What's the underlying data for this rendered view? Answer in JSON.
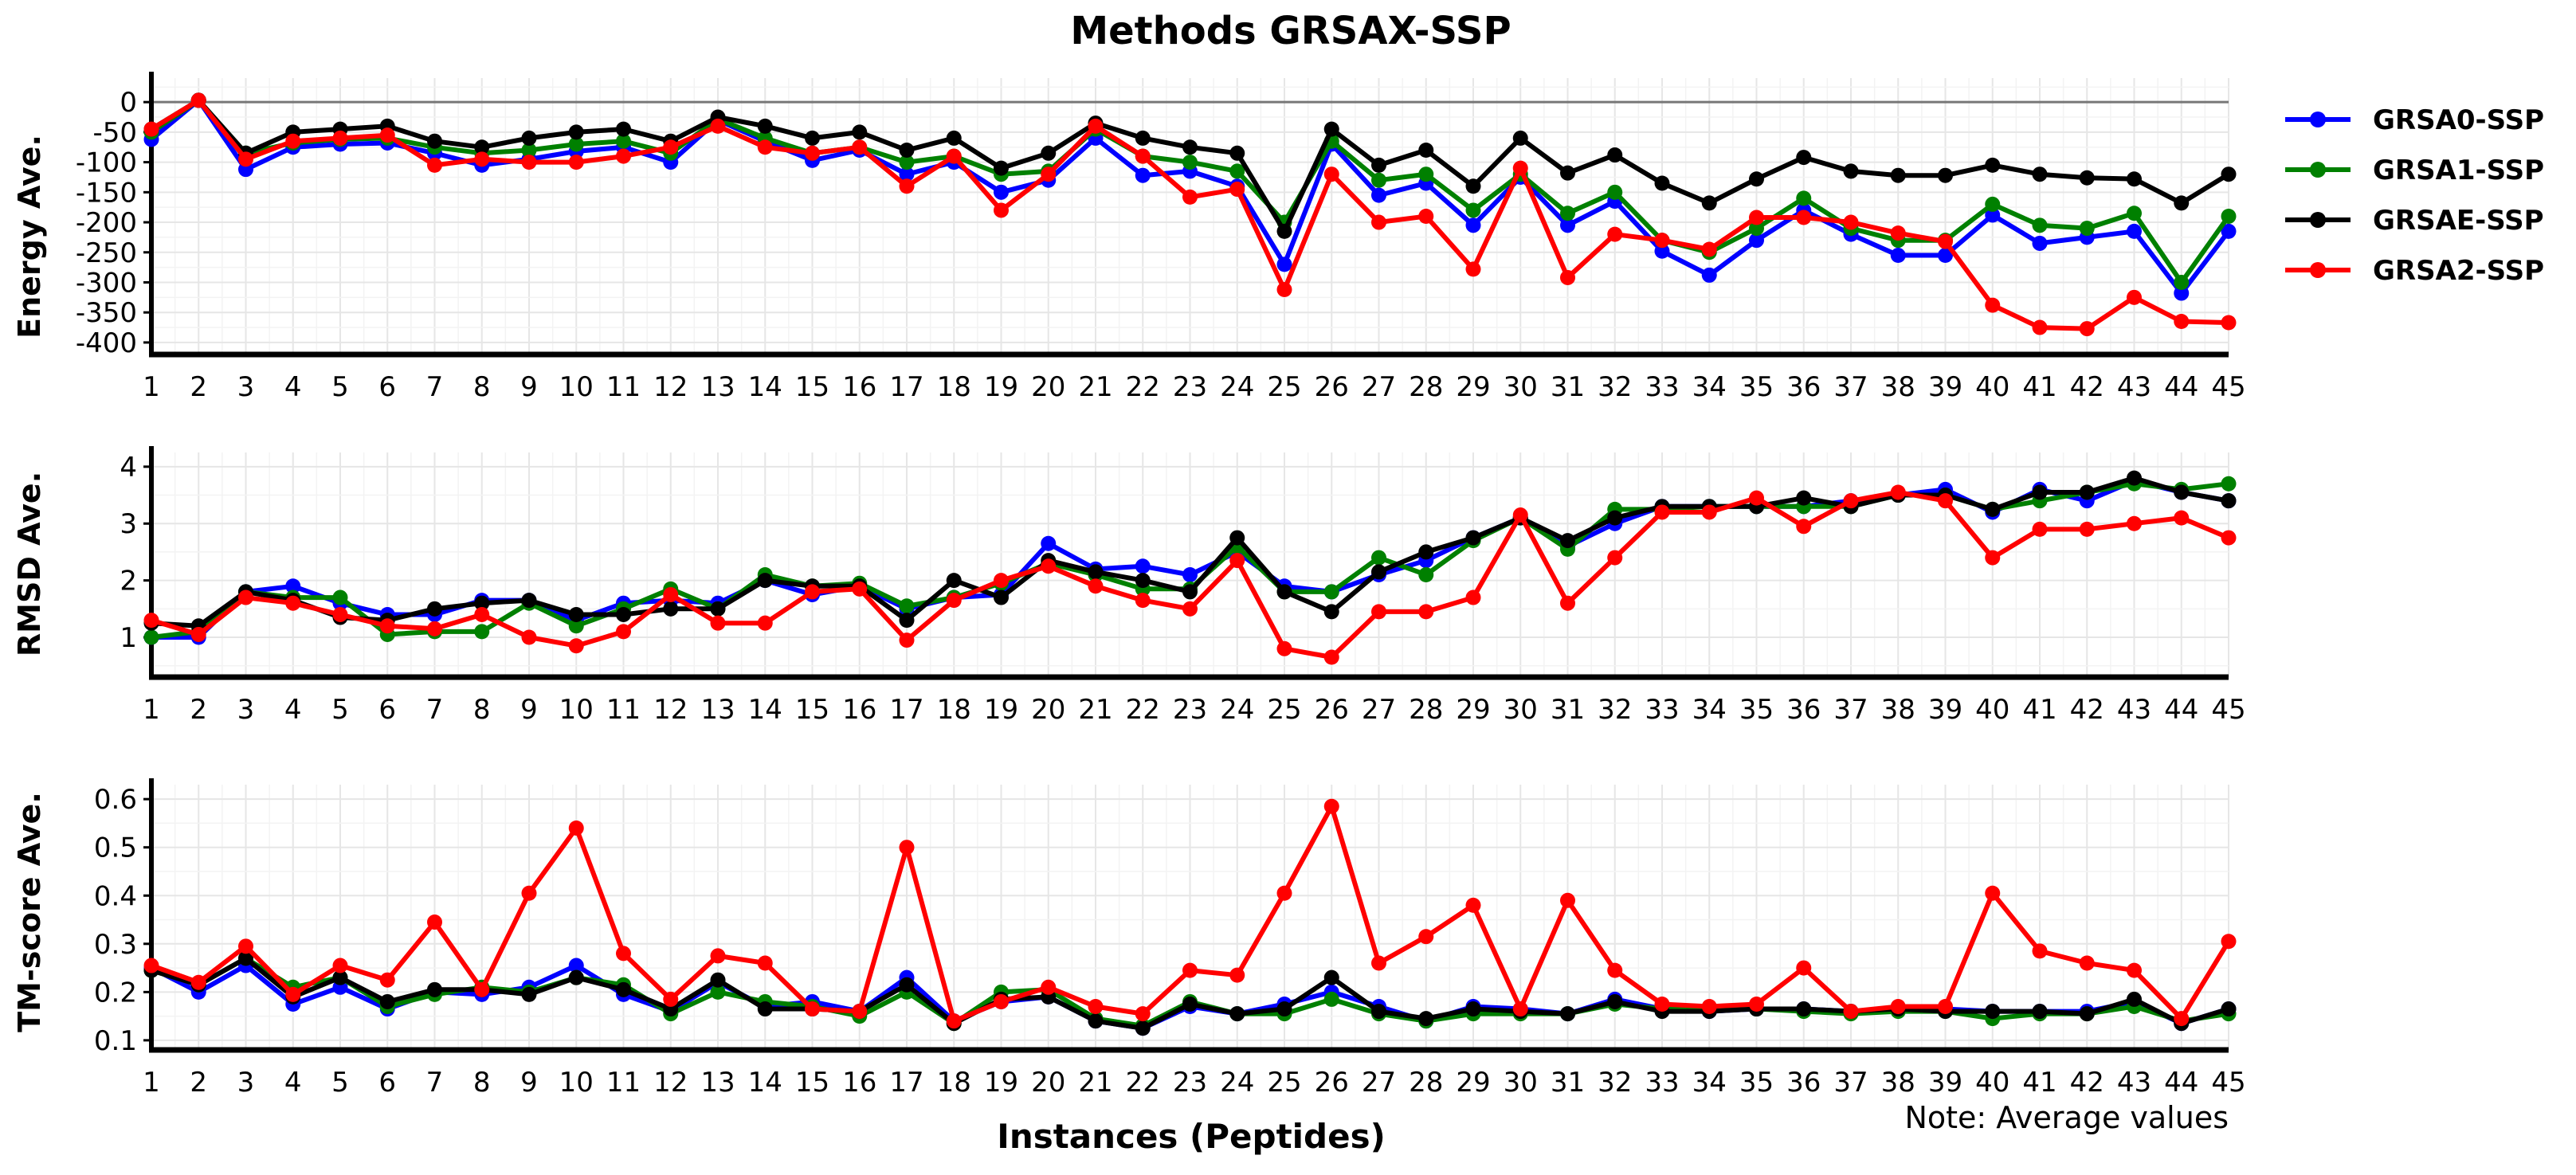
{
  "chart_data": {
    "title": "Methods GRSAX-SSP",
    "type": "line",
    "xlabel": "Instances (Peptides)",
    "note": "Note: Average values",
    "x": [
      1,
      2,
      3,
      4,
      5,
      6,
      7,
      8,
      9,
      10,
      11,
      12,
      13,
      14,
      15,
      16,
      17,
      18,
      19,
      20,
      21,
      22,
      23,
      24,
      25,
      26,
      27,
      28,
      29,
      30,
      31,
      32,
      33,
      34,
      35,
      36,
      37,
      38,
      39,
      40,
      41,
      42,
      43,
      44,
      45
    ],
    "series_meta": [
      {
        "name": "GRSA0-SSP",
        "color": "#0000ff"
      },
      {
        "name": "GRSA1-SSP",
        "color": "#008000"
      },
      {
        "name": "GRSAE-SSP",
        "color": "#000000"
      },
      {
        "name": "GRSA2-SSP",
        "color": "#ff0000"
      }
    ],
    "legend_position": "right",
    "panels": [
      {
        "ylabel": "Energy Ave.",
        "ylim": [
          -420,
          40
        ],
        "yticks": [
          0,
          -50,
          -100,
          -150,
          -200,
          -250,
          -300,
          -350,
          -400
        ],
        "ytick_labels": [
          "0",
          "-50",
          "-100",
          "-150",
          "-200",
          "-250",
          "-300",
          "-350",
          "-400"
        ],
        "zero_line": true,
        "series": [
          {
            "name": "GRSA0-SSP",
            "values": [
              -62,
              3,
              -112,
              -75,
              -70,
              -68,
              -85,
              -105,
              -95,
              -82,
              -75,
              -100,
              -30,
              -65,
              -97,
              -80,
              -120,
              -100,
              -150,
              -130,
              -60,
              -122,
              -115,
              -140,
              -270,
              -70,
              -155,
              -135,
              -205,
              -125,
              -205,
              -165,
              -248,
              -288,
              -230,
              -180,
              -220,
              -255,
              -255,
              -188,
              -235,
              -225,
              -215,
              -318,
              -215
            ]
          },
          {
            "name": "GRSA1-SSP",
            "values": [
              -50,
              3,
              -85,
              -68,
              -62,
              -60,
              -75,
              -85,
              -80,
              -70,
              -65,
              -85,
              -28,
              -60,
              -85,
              -75,
              -100,
              -90,
              -120,
              -115,
              -45,
              -90,
              -100,
              -115,
              -200,
              -65,
              -130,
              -120,
              -180,
              -120,
              -185,
              -150,
              -230,
              -250,
              -210,
              -160,
              -210,
              -230,
              -230,
              -170,
              -205,
              -210,
              -185,
              -300,
              -190
            ]
          },
          {
            "name": "GRSAE-SSP",
            "values": [
              -45,
              3,
              -85,
              -50,
              -45,
              -40,
              -65,
              -75,
              -60,
              -50,
              -45,
              -65,
              -25,
              -40,
              -60,
              -50,
              -80,
              -60,
              -110,
              -85,
              -35,
              -60,
              -75,
              -85,
              -215,
              -45,
              -105,
              -80,
              -140,
              -60,
              -118,
              -88,
              -135,
              -168,
              -128,
              -92,
              -115,
              -122,
              -122,
              -105,
              -120,
              -126,
              -128,
              -168,
              -120
            ]
          },
          {
            "name": "GRSA2-SSP",
            "values": [
              -45,
              3,
              -95,
              -65,
              -60,
              -55,
              -105,
              -95,
              -100,
              -100,
              -90,
              -75,
              -40,
              -75,
              -85,
              -75,
              -140,
              -90,
              -180,
              -120,
              -40,
              -90,
              -158,
              -145,
              -312,
              -120,
              -200,
              -190,
              -278,
              -110,
              -292,
              -220,
              -230,
              -245,
              -192,
              -192,
              -200,
              -218,
              -232,
              -338,
              -375,
              -377,
              -325,
              -365,
              -367
            ]
          }
        ]
      },
      {
        "ylabel": "RMSD Ave.",
        "ylim": [
          0.3,
          4.25
        ],
        "yticks": [
          1,
          2,
          3,
          4
        ],
        "ytick_labels": [
          "1",
          "2",
          "3",
          "4"
        ],
        "zero_line": false,
        "series": [
          {
            "name": "GRSA0-SSP",
            "values": [
              1.0,
              1.0,
              1.8,
              1.9,
              1.6,
              1.4,
              1.4,
              1.65,
              1.65,
              1.3,
              1.6,
              1.65,
              1.6,
              2.0,
              1.75,
              1.9,
              1.5,
              1.7,
              1.75,
              2.65,
              2.2,
              2.25,
              2.1,
              2.5,
              1.9,
              1.8,
              2.1,
              2.35,
              2.75,
              3.1,
              2.6,
              3.0,
              3.3,
              3.3,
              3.3,
              3.3,
              3.4,
              3.5,
              3.6,
              3.2,
              3.6,
              3.4,
              3.75,
              3.55,
              3.4
            ]
          },
          {
            "name": "GRSA1-SSP",
            "values": [
              1.0,
              1.1,
              1.8,
              1.7,
              1.7,
              1.05,
              1.1,
              1.1,
              1.6,
              1.2,
              1.5,
              1.85,
              1.5,
              2.1,
              1.9,
              1.95,
              1.55,
              1.7,
              1.95,
              2.3,
              2.1,
              1.85,
              1.85,
              2.6,
              1.8,
              1.8,
              2.4,
              2.1,
              2.7,
              3.1,
              2.55,
              3.25,
              3.25,
              3.3,
              3.3,
              3.3,
              3.3,
              3.5,
              3.5,
              3.25,
              3.4,
              3.55,
              3.7,
              3.6,
              3.7
            ]
          },
          {
            "name": "GRSAE-SSP",
            "values": [
              1.25,
              1.2,
              1.8,
              1.65,
              1.35,
              1.3,
              1.5,
              1.6,
              1.65,
              1.4,
              1.4,
              1.5,
              1.5,
              2.0,
              1.9,
              1.9,
              1.3,
              2.0,
              1.7,
              2.35,
              2.15,
              2.0,
              1.8,
              2.75,
              1.8,
              1.45,
              2.15,
              2.5,
              2.75,
              3.1,
              2.7,
              3.1,
              3.3,
              3.3,
              3.3,
              3.45,
              3.3,
              3.5,
              3.5,
              3.25,
              3.55,
              3.55,
              3.8,
              3.55,
              3.4
            ]
          },
          {
            "name": "GRSA2-SSP",
            "values": [
              1.3,
              1.05,
              1.7,
              1.6,
              1.4,
              1.2,
              1.15,
              1.4,
              1.0,
              0.85,
              1.1,
              1.75,
              1.25,
              1.25,
              1.8,
              1.85,
              0.95,
              1.65,
              2.0,
              2.25,
              1.9,
              1.65,
              1.5,
              2.35,
              0.8,
              0.65,
              1.45,
              1.45,
              1.7,
              3.15,
              1.6,
              2.4,
              3.2,
              3.2,
              3.45,
              2.95,
              3.4,
              3.55,
              3.4,
              2.4,
              2.9,
              2.9,
              3.0,
              3.1,
              2.75
            ]
          }
        ]
      },
      {
        "ylabel": "TM-score Ave.",
        "ylim": [
          0.08,
          0.63
        ],
        "yticks": [
          0.1,
          0.2,
          0.3,
          0.4,
          0.5,
          0.6
        ],
        "ytick_labels": [
          "0.1",
          "0.2",
          "0.3",
          "0.4",
          "0.5",
          "0.6"
        ],
        "zero_line": false,
        "series": [
          {
            "name": "GRSA0-SSP",
            "values": [
              0.25,
              0.2,
              0.255,
              0.175,
              0.21,
              0.165,
              0.2,
              0.195,
              0.21,
              0.255,
              0.195,
              0.16,
              0.22,
              0.17,
              0.18,
              0.16,
              0.23,
              0.14,
              0.18,
              0.19,
              0.14,
              0.125,
              0.17,
              0.155,
              0.175,
              0.2,
              0.17,
              0.14,
              0.17,
              0.165,
              0.155,
              0.185,
              0.165,
              0.16,
              0.165,
              0.165,
              0.16,
              0.165,
              0.165,
              0.16,
              0.16,
              0.16,
              0.18,
              0.135,
              0.165
            ]
          },
          {
            "name": "GRSA1-SSP",
            "values": [
              0.245,
              0.215,
              0.27,
              0.21,
              0.23,
              0.17,
              0.195,
              0.21,
              0.2,
              0.23,
              0.215,
              0.155,
              0.2,
              0.18,
              0.17,
              0.15,
              0.2,
              0.135,
              0.2,
              0.205,
              0.145,
              0.13,
              0.18,
              0.155,
              0.155,
              0.185,
              0.155,
              0.14,
              0.155,
              0.155,
              0.155,
              0.175,
              0.165,
              0.165,
              0.165,
              0.16,
              0.155,
              0.16,
              0.16,
              0.145,
              0.155,
              0.155,
              0.17,
              0.14,
              0.155
            ]
          },
          {
            "name": "GRSAE-SSP",
            "values": [
              0.245,
              0.215,
              0.27,
              0.19,
              0.23,
              0.18,
              0.205,
              0.205,
              0.195,
              0.23,
              0.205,
              0.165,
              0.225,
              0.165,
              0.165,
              0.16,
              0.215,
              0.135,
              0.185,
              0.19,
              0.14,
              0.125,
              0.175,
              0.155,
              0.165,
              0.23,
              0.16,
              0.145,
              0.165,
              0.16,
              0.155,
              0.18,
              0.16,
              0.16,
              0.165,
              0.165,
              0.16,
              0.165,
              0.16,
              0.16,
              0.16,
              0.155,
              0.185,
              0.135,
              0.165
            ]
          },
          {
            "name": "GRSA2-SSP",
            "values": [
              0.255,
              0.22,
              0.295,
              0.195,
              0.255,
              0.225,
              0.345,
              0.205,
              0.405,
              0.54,
              0.28,
              0.185,
              0.275,
              0.26,
              0.165,
              0.16,
              0.5,
              0.14,
              0.18,
              0.21,
              0.17,
              0.155,
              0.245,
              0.235,
              0.405,
              0.585,
              0.26,
              0.315,
              0.38,
              0.165,
              0.39,
              0.245,
              0.175,
              0.17,
              0.175,
              0.25,
              0.16,
              0.17,
              0.17,
              0.405,
              0.285,
              0.26,
              0.245,
              0.145,
              0.305
            ]
          }
        ]
      }
    ]
  }
}
